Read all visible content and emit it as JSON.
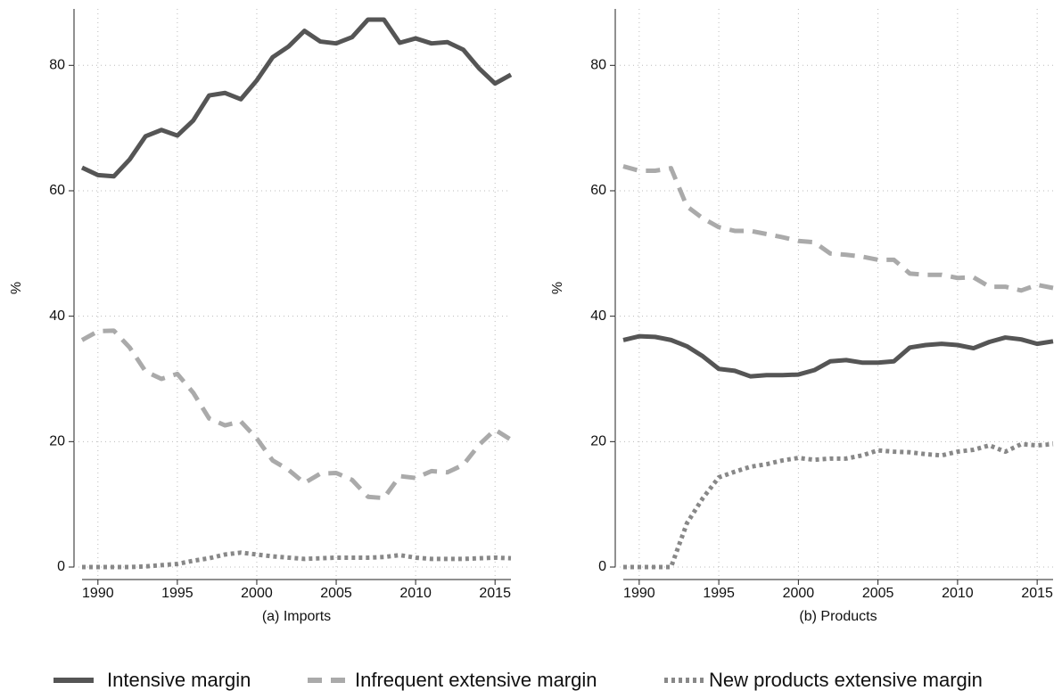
{
  "chart_data": [
    {
      "type": "line",
      "xlabel": "(a) Imports",
      "ylabel": "%",
      "x": [
        1989,
        1990,
        1991,
        1992,
        1993,
        1994,
        1995,
        1996,
        1997,
        1998,
        1999,
        2000,
        2001,
        2002,
        2003,
        2004,
        2005,
        2006,
        2007,
        2008,
        2009,
        2010,
        2011,
        2012,
        2013,
        2014,
        2015,
        2016
      ],
      "series": [
        {
          "name": "Intensive margin",
          "color": "#555555",
          "dash": "solid",
          "values": [
            63.7,
            62.5,
            62.3,
            65,
            68.7,
            69.7,
            68.8,
            71.2,
            75.2,
            75.6,
            74.6,
            77.6,
            81.3,
            83,
            85.5,
            83.8,
            83.5,
            84.5,
            87.3,
            87.3,
            83.6,
            84.3,
            83.5,
            83.7,
            82.5,
            79.5,
            77.1,
            78.5
          ]
        },
        {
          "name": "Infrequent extensive margin",
          "color": "#aaaaaa",
          "dash": "dashed",
          "values": [
            36.2,
            37.6,
            37.7,
            35,
            31.2,
            30,
            30.8,
            27.8,
            23.7,
            22.6,
            23.2,
            20.5,
            17,
            15.5,
            13.4,
            14.9,
            15,
            13.9,
            11.2,
            11,
            14.5,
            14.2,
            15.3,
            15.1,
            16.3,
            19.5,
            21.9,
            20.3
          ]
        },
        {
          "name": "New products extensive margin",
          "color": "#888888",
          "dash": "dotted",
          "values": [
            0,
            0,
            0,
            0,
            0.1,
            0.3,
            0.5,
            1,
            1.4,
            2,
            2.3,
            2,
            1.7,
            1.5,
            1.3,
            1.4,
            1.5,
            1.5,
            1.5,
            1.6,
            1.9,
            1.5,
            1.3,
            1.3,
            1.3,
            1.4,
            1.5,
            1.4
          ]
        }
      ],
      "xlim": [
        1989,
        2016
      ],
      "ylim": [
        0,
        89
      ],
      "xticks": [
        1990,
        1995,
        2000,
        2005,
        2010,
        2015
      ],
      "yticks": [
        0,
        20,
        40,
        60,
        80
      ],
      "grid": true
    },
    {
      "type": "line",
      "xlabel": "(b) Products",
      "ylabel": "%",
      "x": [
        1989,
        1990,
        1991,
        1992,
        1993,
        1994,
        1995,
        1996,
        1997,
        1998,
        1999,
        2000,
        2001,
        2002,
        2003,
        2004,
        2005,
        2006,
        2007,
        2008,
        2009,
        2010,
        2011,
        2012,
        2013,
        2014,
        2015,
        2016
      ],
      "series": [
        {
          "name": "Intensive margin",
          "color": "#555555",
          "dash": "solid",
          "values": [
            36.2,
            36.8,
            36.7,
            36.2,
            35.2,
            33.6,
            31.6,
            31.3,
            30.4,
            30.6,
            30.6,
            30.7,
            31.4,
            32.8,
            33,
            32.6,
            32.6,
            32.8,
            35,
            35.4,
            35.6,
            35.4,
            34.9,
            35.9,
            36.6,
            36.3,
            35.6,
            36
          ]
        },
        {
          "name": "Infrequent extensive margin",
          "color": "#aaaaaa",
          "dash": "dashed",
          "values": [
            63.9,
            63.2,
            63.2,
            63.6,
            57.5,
            55.6,
            54.2,
            53.6,
            53.6,
            53.1,
            52.6,
            52,
            51.8,
            50,
            49.8,
            49.5,
            49,
            49,
            46.8,
            46.6,
            46.6,
            46.1,
            46.2,
            44.7,
            44.7,
            44.1,
            45,
            44.5
          ]
        },
        {
          "name": "New products extensive margin",
          "color": "#888888",
          "dash": "dotted",
          "values": [
            0,
            0,
            0,
            0,
            7,
            11,
            14.3,
            15.2,
            16,
            16.4,
            17,
            17.4,
            17.1,
            17.3,
            17.3,
            17.8,
            18.6,
            18.4,
            18.3,
            18,
            17.8,
            18.4,
            18.7,
            19.4,
            18.4,
            19.6,
            19.4,
            19.6
          ]
        }
      ],
      "xlim": [
        1989,
        2016
      ],
      "ylim": [
        0,
        89
      ],
      "xticks": [
        1990,
        1995,
        2000,
        2005,
        2010,
        2015
      ],
      "yticks": [
        0,
        20,
        40,
        60,
        80
      ],
      "grid": true
    }
  ]
}
